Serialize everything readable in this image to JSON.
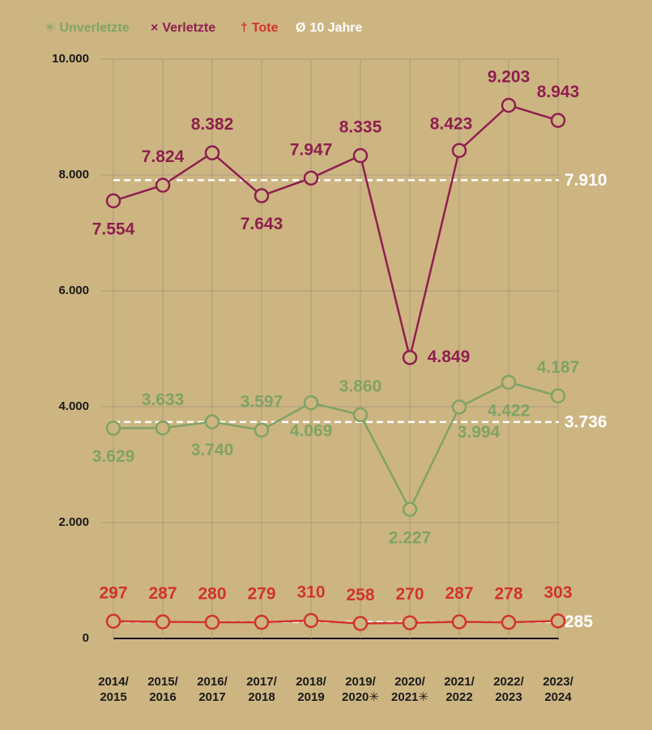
{
  "chart_data": {
    "type": "line",
    "categories": [
      [
        "2014/",
        "2015"
      ],
      [
        "2015/",
        "2016"
      ],
      [
        "2016/",
        "2017"
      ],
      [
        "2017/",
        "2018"
      ],
      [
        "2018/",
        "2019"
      ],
      [
        "2019/",
        "2020✳"
      ],
      [
        "2020/",
        "2021✳"
      ],
      [
        "2021/",
        "2022"
      ],
      [
        "2022/",
        "2023"
      ],
      [
        "2023/",
        "2024"
      ]
    ],
    "series": [
      {
        "name": "Unverletzte",
        "marker": "✳",
        "color": "#7fa365",
        "values": [
          3629,
          3633,
          3740,
          3597,
          4069,
          3860,
          2227,
          3994,
          4422,
          4187
        ],
        "value_labels": [
          "3.629",
          "3.633",
          "3.740",
          "3.597",
          "4.069",
          "3.860",
          "2.227",
          "3.994",
          "4.422",
          "4.187"
        ]
      },
      {
        "name": "Verletzte",
        "marker": "×",
        "color": "#8e1f4f",
        "values": [
          7554,
          7824,
          8382,
          7643,
          7947,
          8335,
          4849,
          8423,
          9203,
          8943
        ],
        "value_labels": [
          "7.554",
          "7.824",
          "8.382",
          "7.643",
          "7.947",
          "8.335",
          "4.849",
          "8.423",
          "9.203",
          "8.943"
        ]
      },
      {
        "name": "Tote",
        "marker": "†",
        "color": "#d0342c",
        "values": [
          297,
          287,
          280,
          279,
          310,
          258,
          270,
          287,
          278,
          303
        ]
      }
    ],
    "averages": {
      "name": "10 Jahre",
      "marker": "Ø",
      "color": "#ffffff",
      "values": [
        7910,
        3736,
        285
      ],
      "value_labels": [
        "7.910",
        "3.736",
        "285"
      ]
    },
    "ylim": [
      0,
      10000
    ],
    "yticks": [
      0,
      {
        "value": 2000,
        "label": "2.000"
      },
      {
        "value": 4000,
        "label": "4.000"
      },
      {
        "value": 6000,
        "label": "6.000"
      },
      {
        "value": 8000,
        "label": "8.000"
      },
      {
        "value": 10000,
        "label": "10.000"
      }
    ],
    "grid": true
  }
}
